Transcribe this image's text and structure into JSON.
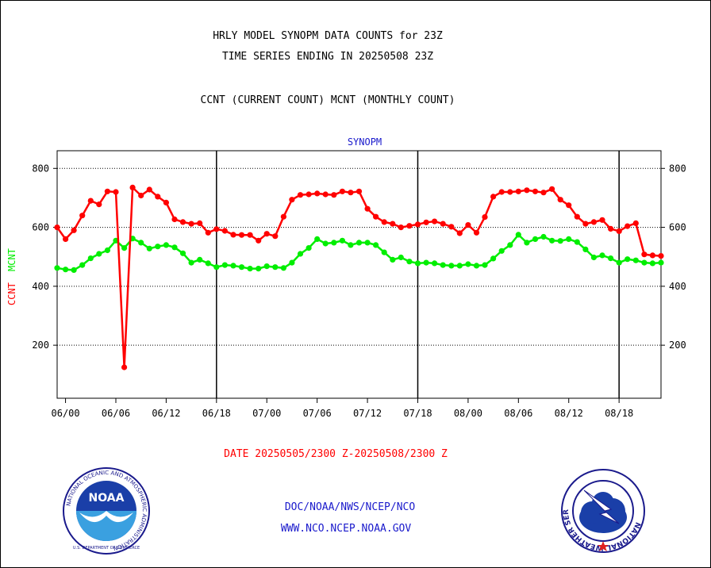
{
  "header": {
    "title_line1": "HRLY MODEL SYNOPM DATA COUNTS for 23Z",
    "title_line2": "TIME SERIES ENDING IN 20250508 23Z",
    "subtitle": "CCNT (CURRENT COUNT) MCNT (MONTHLY COUNT)"
  },
  "footer": {
    "date_range": "DATE 20250505/2300 Z-20250508/2300 Z",
    "link1": "DOC/NOAA/NWS/NCEP/NCO",
    "link2": "WWW.NCO.NCEP.NOAA.GOV"
  },
  "logos": {
    "noaa_text": "NOAA",
    "noaa_ring": "NATIONAL OCEANIC AND ATMOSPHERIC ADMINISTRATION",
    "noaa_ring_bottom": "U.S. DEPARTMENT OF COMMERCE",
    "nws_ring": "NATIONAL WEATHER SERVICE"
  },
  "colors": {
    "ccnt": "#ff0000",
    "mcnt": "#00ee00",
    "grid": "#000000",
    "label_blue": "#1a1acc"
  },
  "chart_data": {
    "type": "line",
    "panel_title": "SYNOPM",
    "ylabel_ccnt": "CCNT",
    "ylabel_mcnt": "MCNT",
    "ylim": [
      20,
      860
    ],
    "y_ticks": [
      200,
      400,
      600,
      800
    ],
    "x_ticks": [
      "06/00",
      "06/06",
      "06/12",
      "06/18",
      "07/00",
      "07/06",
      "07/12",
      "07/18",
      "08/00",
      "08/06",
      "08/12",
      "08/18"
    ],
    "x_start_hour": -1,
    "x_end_hour": 71,
    "x_tick_hours": [
      0,
      6,
      12,
      18,
      24,
      30,
      36,
      42,
      48,
      54,
      60,
      66
    ],
    "day_boundaries": [
      18,
      42,
      66
    ],
    "grid": true,
    "series": [
      {
        "name": "CCNT",
        "color": "#ff0000",
        "values": [
          600,
          560,
          590,
          640,
          690,
          678,
          722,
          720,
          125,
          735,
          708,
          728,
          704,
          684,
          627,
          618,
          612,
          614,
          582,
          594,
          588,
          575,
          574,
          574,
          555,
          578,
          570,
          636,
          694,
          710,
          712,
          715,
          712,
          710,
          722,
          718,
          722,
          663,
          636,
          618,
          612,
          600,
          605,
          610,
          617,
          620,
          612,
          602,
          580,
          608,
          582,
          635,
          704,
          720,
          720,
          722,
          726,
          722,
          718,
          730,
          694,
          675,
          636,
          612,
          618,
          625,
          595,
          587,
          604,
          614,
          508,
          505,
          503
        ]
      },
      {
        "name": "MCNT",
        "color": "#00ee00",
        "values": [
          462,
          457,
          455,
          472,
          495,
          510,
          522,
          555,
          530,
          562,
          548,
          528,
          535,
          540,
          532,
          512,
          480,
          490,
          478,
          465,
          472,
          470,
          465,
          460,
          460,
          468,
          465,
          462,
          480,
          510,
          530,
          560,
          545,
          548,
          555,
          540,
          548,
          548,
          540,
          515,
          490,
          498,
          484,
          478,
          480,
          478,
          472,
          470,
          470,
          475,
          470,
          472,
          494,
          520,
          540,
          575,
          548,
          560,
          568,
          555,
          554,
          560,
          550,
          525,
          498,
          505,
          495,
          480,
          492,
          488,
          480,
          478,
          480
        ]
      }
    ]
  }
}
